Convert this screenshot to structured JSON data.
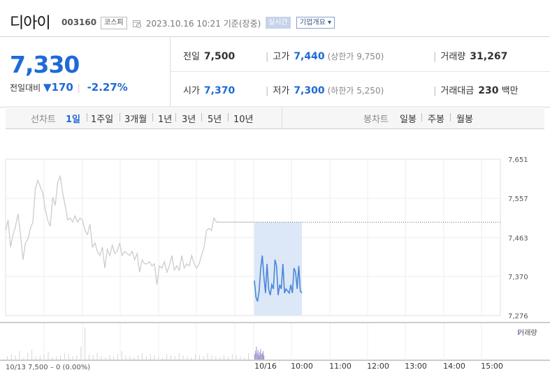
{
  "stock": {
    "name": "디아이",
    "code": "003160",
    "market": "코스피",
    "datetime": "2023.10.16 10:21",
    "status": "기준(장중)",
    "realtime_label": "실시간",
    "company_info_label": "기업개요 ▾"
  },
  "quote": {
    "price": "7,330",
    "vs_label": "전일대비",
    "change": "▼170",
    "change_pct": "-2.27%",
    "prev_close_label": "전일",
    "prev_close": "7,500",
    "high_label": "고가",
    "high": "7,440",
    "upper_limit": "(상한가 9,750)",
    "volume_label": "거래량",
    "volume": "31,267",
    "open_label": "시가",
    "open": "7,370",
    "low_label": "저가",
    "low": "7,300",
    "lower_limit": "(하한가 5,250)",
    "amount_label": "거래대금",
    "amount": "230",
    "amount_unit": "백만"
  },
  "tabs": {
    "line_label": "선차트",
    "line_periods": [
      "1일",
      "1주일",
      "3개월",
      "1년",
      "3년",
      "5년",
      "10년"
    ],
    "active_period": "1일",
    "candle_label": "봉차트",
    "candle_periods": [
      "일봉",
      "주봉",
      "월봉"
    ]
  },
  "colors": {
    "accent": "#1f6ad6",
    "down": "#1f6ad6",
    "prev_day_line": "#cccccc",
    "today_line": "#4a86d8",
    "highlight_box": "#dce8f8",
    "volume_bar": "#9b8fc8"
  },
  "chart_data": {
    "type": "line",
    "y_ticks": [
      "7,651",
      "7,557",
      "7,463",
      "7,370",
      "7,276"
    ],
    "ylim": [
      7276,
      7651
    ],
    "x_ticks": [
      "10/16",
      "10:00",
      "11:00",
      "12:00",
      "13:00",
      "14:00",
      "15:00"
    ],
    "prev_day_caption": "10/13  7,500 – 0 (0.00%)",
    "prev_close_level": 7500,
    "volume_label": "거래량",
    "series": [
      {
        "x": [
          0,
          1,
          2,
          3,
          4,
          5,
          6,
          7,
          8,
          9,
          10,
          11,
          12,
          13,
          14,
          15,
          16,
          17,
          18,
          19,
          20,
          21,
          22,
          23,
          24,
          25,
          26,
          27,
          28,
          29,
          30,
          31,
          32,
          33,
          34,
          35,
          36,
          37,
          38,
          39,
          40,
          41,
          42,
          43,
          44,
          45,
          46,
          47,
          48,
          49,
          50,
          51,
          52,
          53,
          54,
          55,
          56,
          57,
          58,
          59,
          60,
          61,
          62,
          63,
          64,
          65,
          66,
          67,
          68,
          69,
          70,
          71,
          72,
          73,
          74,
          75,
          76,
          77,
          78,
          79,
          80,
          81,
          82,
          83,
          84,
          85,
          86,
          87,
          88,
          89,
          90,
          91,
          92,
          93,
          94,
          95,
          96,
          97,
          98,
          99,
          100
        ],
        "values": [
          7480,
          7505,
          7440,
          7470,
          7490,
          7520,
          7470,
          7410,
          7450,
          7460,
          7485,
          7500,
          7580,
          7600,
          7585,
          7570,
          7530,
          7505,
          7490,
          7560,
          7540,
          7595,
          7610,
          7570,
          7540,
          7505,
          7510,
          7500,
          7515,
          7500,
          7510,
          7505,
          7480,
          7470,
          7495,
          7440,
          7450,
          7430,
          7420,
          7440,
          7390,
          7435,
          7420,
          7445,
          7425,
          7430,
          7450,
          7420,
          7430,
          7425,
          7420,
          7430,
          7410,
          7425,
          7380,
          7410,
          7400,
          7400,
          7405,
          7395,
          7400,
          7350,
          7395,
          7390,
          7405,
          7380,
          7395,
          7420,
          7385,
          7395,
          7385,
          7420,
          7390,
          7400,
          7395,
          7420,
          7400,
          7390,
          7400,
          7420,
          7440,
          7480,
          7485,
          7480,
          7510,
          7500,
          7500,
          7500,
          7500,
          7500,
          7500,
          7500,
          7500,
          7500,
          7500,
          7500,
          7500,
          7500,
          7500,
          7500,
          7500
        ]
      },
      {
        "x": [
          0,
          1,
          2,
          3,
          4,
          5,
          6,
          7,
          8,
          9,
          10,
          11,
          12,
          13,
          14,
          15,
          16,
          17,
          18,
          19,
          20,
          21,
          22,
          23,
          24,
          25,
          26,
          27,
          28,
          29,
          30
        ],
        "values": [
          7360,
          7320,
          7310,
          7335,
          7390,
          7420,
          7370,
          7330,
          7400,
          7340,
          7325,
          7350,
          7340,
          7410,
          7395,
          7325,
          7350,
          7340,
          7400,
          7330,
          7340,
          7335,
          7330,
          7350,
          7330,
          7390,
          7380,
          7340,
          7395,
          7335,
          7330
        ]
      }
    ],
    "volume": [
      3,
      5,
      4,
      8,
      2,
      6,
      9,
      3,
      4,
      5,
      7,
      2,
      3,
      4,
      6,
      5,
      3,
      4,
      12,
      30,
      5,
      4,
      6,
      3,
      2,
      4,
      3,
      5,
      8,
      4,
      3,
      2,
      4,
      6,
      3,
      5,
      4,
      3,
      2,
      5,
      4,
      3,
      6,
      4,
      3,
      2,
      5,
      4,
      3,
      6,
      4,
      3,
      2,
      4,
      3,
      5,
      4,
      3,
      2,
      6
    ],
    "volume_today": [
      5,
      8,
      12,
      6,
      9,
      4,
      7,
      10,
      5,
      6,
      8,
      4
    ]
  }
}
